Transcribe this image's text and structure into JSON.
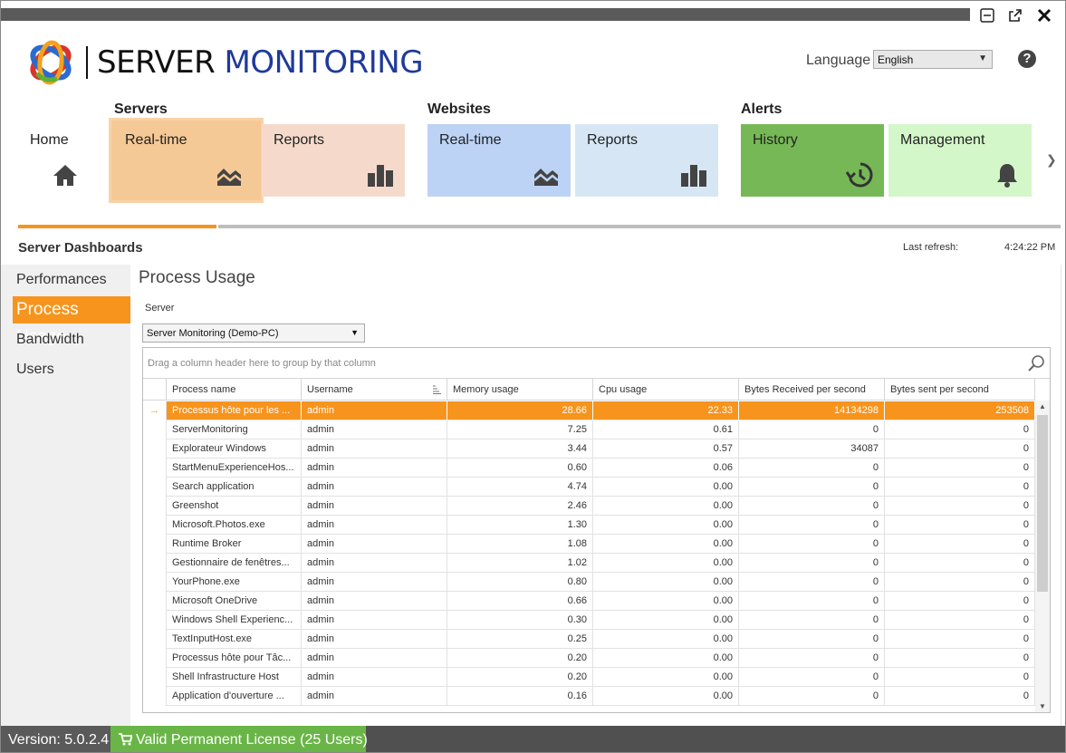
{
  "window": {
    "minimize_icon": "minimize-icon",
    "popout_icon": "popout-icon",
    "close_icon": "close-icon"
  },
  "logo": {
    "part1": "SERVER",
    "part2": "MONITORING"
  },
  "language": {
    "label": "Language",
    "value": "English"
  },
  "ribbon": {
    "groups": {
      "servers": "Servers",
      "websites": "Websites",
      "alerts": "Alerts"
    },
    "tiles": {
      "home": "Home",
      "servers_realtime": "Real-time",
      "servers_reports": "Reports",
      "websites_realtime": "Real-time",
      "websites_reports": "Reports",
      "alerts_history": "History",
      "alerts_management": "Management"
    },
    "colors": {
      "servers_realtime": "#f5c996",
      "servers_reports": "#f5dacb",
      "websites_realtime": "#bcd3f5",
      "websites_reports": "#d7e6f5",
      "alerts_history": "#76b856",
      "alerts_management": "#d4f7c9",
      "accent": "#f7941d"
    }
  },
  "dashboard": {
    "title": "Server Dashboards",
    "refresh_label": "Last refresh:",
    "refresh_time": "4:24:22 PM"
  },
  "sidebar": {
    "items": [
      "Performances",
      "Process Usage",
      "Bandwidth",
      "Users"
    ],
    "active": "Process Usage"
  },
  "content": {
    "title": "Process Usage",
    "server_label": "Server",
    "server_value": "Server Monitoring (Demo-PC)",
    "group_hint": "Drag a column header here to group by that column"
  },
  "grid": {
    "columns": [
      "Process name",
      "Username",
      "Memory usage",
      "Cpu usage",
      "Bytes Received per second",
      "Bytes sent per second"
    ],
    "rows": [
      [
        "Processus hôte pour les ...",
        "admin",
        "28.66",
        "22.33",
        "14134298",
        "253508"
      ],
      [
        "ServerMonitoring",
        "admin",
        "7.25",
        "0.61",
        "0",
        "0"
      ],
      [
        "Explorateur Windows",
        "admin",
        "3.44",
        "0.57",
        "34087",
        "0"
      ],
      [
        "StartMenuExperienceHos...",
        "admin",
        "0.60",
        "0.06",
        "0",
        "0"
      ],
      [
        "Search application",
        "admin",
        "4.74",
        "0.00",
        "0",
        "0"
      ],
      [
        "Greenshot",
        "admin",
        "2.46",
        "0.00",
        "0",
        "0"
      ],
      [
        "Microsoft.Photos.exe",
        "admin",
        "1.30",
        "0.00",
        "0",
        "0"
      ],
      [
        "Runtime Broker",
        "admin",
        "1.08",
        "0.00",
        "0",
        "0"
      ],
      [
        "Gestionnaire de fenêtres...",
        "admin",
        "1.02",
        "0.00",
        "0",
        "0"
      ],
      [
        "YourPhone.exe",
        "admin",
        "0.80",
        "0.00",
        "0",
        "0"
      ],
      [
        "Microsoft OneDrive",
        "admin",
        "0.66",
        "0.00",
        "0",
        "0"
      ],
      [
        "Windows Shell Experienc...",
        "admin",
        "0.30",
        "0.00",
        "0",
        "0"
      ],
      [
        "TextInputHost.exe",
        "admin",
        "0.25",
        "0.00",
        "0",
        "0"
      ],
      [
        "Processus hôte pour Tâc...",
        "admin",
        "0.20",
        "0.00",
        "0",
        "0"
      ],
      [
        "Shell Infrastructure Host",
        "admin",
        "0.20",
        "0.00",
        "0",
        "0"
      ],
      [
        "Application d'ouverture ...",
        "admin",
        "0.16",
        "0.00",
        "0",
        "0"
      ]
    ],
    "selected_row": 0,
    "sorted_column": "Username"
  },
  "status": {
    "version": "Version: 5.0.2.4",
    "license": "Valid Permanent License (25 Users)"
  }
}
